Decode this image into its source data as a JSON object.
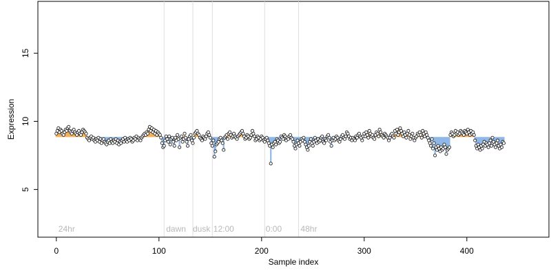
{
  "chart_data": {
    "type": "scatter",
    "title": "",
    "xlabel": "Sample index",
    "ylabel": "Expression",
    "xlim": [
      -18,
      480
    ],
    "ylim": [
      1.5,
      18.8
    ],
    "xticks": [
      0,
      100,
      200,
      300,
      400
    ],
    "yticks": [
      5,
      10,
      15
    ],
    "grid": false,
    "baseline": 8.85,
    "colors": {
      "above_baseline": "#f5b05b",
      "below_baseline": "#8fb7e8",
      "divider": "#dddddd",
      "point_outline": "#1f1f1f",
      "axis": "#000000"
    },
    "annotations": [
      {
        "label": "24hr",
        "x": 2,
        "y": 2.0
      },
      {
        "label": "dawn",
        "x": 107,
        "y": 2.0
      },
      {
        "label": "dusk",
        "x": 133,
        "y": 2.0
      },
      {
        "label": "12:00",
        "x": 153,
        "y": 2.0
      },
      {
        "label": "0:00",
        "x": 204,
        "y": 2.0
      },
      {
        "label": "48hr",
        "x": 238,
        "y": 2.0
      }
    ],
    "dividers": [
      105,
      133,
      152,
      203,
      236
    ],
    "series": [
      {
        "values": [
          9.1,
          9.3,
          9.5,
          9.2,
          9.4,
          9.3,
          9.1,
          9.0,
          9.2,
          9.4,
          9.3,
          9.5,
          9.6,
          9.3,
          9.2,
          9.1,
          9.3,
          9.4,
          9.2,
          9.1,
          9.0,
          9.2,
          9.3,
          9.1,
          9.0,
          9.2,
          9.4,
          9.3,
          9.2,
          9.1,
          8.8,
          8.7,
          8.6,
          8.8,
          8.9,
          8.7,
          8.8,
          8.6,
          8.5,
          8.7,
          8.6,
          8.8,
          8.5,
          8.7,
          8.4,
          8.6,
          8.7,
          8.5,
          8.4,
          8.3,
          8.5,
          8.6,
          8.4,
          8.7,
          8.5,
          8.4,
          8.6,
          8.5,
          8.7,
          8.4,
          8.6,
          8.3,
          8.5,
          8.4,
          8.6,
          8.7,
          8.5,
          8.8,
          8.6,
          8.5,
          8.7,
          8.6,
          8.8,
          8.7,
          8.5,
          8.6,
          8.8,
          8.7,
          8.9,
          8.6,
          8.8,
          8.7,
          8.6,
          8.8,
          8.9,
          9.0,
          9.1,
          9.0,
          9.2,
          9.1,
          9.4,
          9.6,
          9.3,
          9.5,
          9.2,
          9.4,
          9.1,
          9.3,
          9.0,
          9.2,
          9.1,
          9.0,
          8.8,
          8.4,
          8.1,
          8.2,
          8.6,
          8.9,
          8.7,
          8.5,
          8.9,
          8.3,
          8.7,
          8.8,
          8.5,
          8.2,
          8.8,
          8.6,
          9.0,
          8.7,
          8.1,
          8.8,
          8.9,
          8.5,
          8.7,
          9.1,
          8.8,
          8.5,
          8.2,
          8.7,
          8.9,
          9.0,
          8.6,
          8.4,
          8.8,
          9.1,
          9.2,
          9.3,
          9.1,
          9.0,
          8.8,
          8.7,
          8.6,
          8.9,
          8.8,
          8.7,
          8.9,
          9.1,
          9.2,
          9.0,
          8.8,
          8.4,
          8.2,
          8.6,
          7.4,
          7.8,
          8.3,
          8.4,
          8.5,
          8.7,
          8.8,
          8.6,
          8.4,
          7.9,
          8.8,
          8.9,
          9.0,
          8.7,
          9.1,
          9.2,
          9.0,
          8.8,
          8.9,
          9.1,
          8.9,
          8.8,
          8.7,
          8.9,
          9.0,
          9.1,
          9.2,
          9.3,
          9.1,
          8.9,
          8.7,
          8.8,
          9.0,
          8.9,
          8.7,
          8.8,
          9.0,
          9.3,
          9.1,
          8.9,
          8.6,
          8.7,
          8.9,
          8.8,
          8.6,
          8.7,
          8.9,
          8.8,
          8.6,
          8.5,
          8.7,
          8.8,
          8.6,
          8.4,
          8.2,
          6.9,
          8.3,
          8.1,
          8.4,
          8.5,
          8.3,
          8.7,
          8.6,
          8.4,
          8.5,
          8.9,
          8.8,
          8.7,
          9.0,
          8.9,
          8.6,
          8.8,
          8.7,
          8.9,
          9.0,
          8.8,
          8.7,
          8.5,
          8.2,
          8.0,
          8.3,
          8.6,
          8.4,
          8.2,
          8.5,
          8.7,
          8.6,
          8.8,
          8.5,
          8.3,
          8.1,
          7.9,
          8.2,
          8.5,
          8.7,
          8.4,
          8.2,
          8.5,
          8.8,
          8.6,
          8.4,
          8.7,
          8.5,
          8.6,
          8.8,
          8.9,
          8.5,
          8.4,
          8.7,
          8.6,
          8.9,
          9.0,
          8.8,
          8.5,
          8.2,
          8.6,
          8.8,
          8.6,
          8.7,
          8.9,
          8.8,
          8.6,
          8.5,
          8.7,
          8.9,
          9.0,
          8.8,
          8.7,
          8.9,
          9.2,
          9.1,
          8.9,
          8.7,
          8.8,
          8.6,
          8.8,
          8.7,
          8.6,
          8.9,
          8.8,
          9.0,
          9.1,
          8.9,
          8.8,
          8.6,
          8.9,
          9.1,
          8.9,
          9.2,
          9.0,
          8.8,
          9.3,
          9.1,
          8.9,
          9.0,
          8.8,
          8.7,
          9.0,
          9.2,
          9.1,
          8.9,
          9.4,
          9.2,
          9.0,
          8.9,
          8.8,
          9.1,
          9.0,
          8.9,
          8.8,
          8.6,
          8.8,
          9.0,
          9.1,
          8.9,
          8.8,
          9.3,
          9.1,
          9.4,
          9.0,
          9.2,
          9.5,
          9.3,
          9.1,
          8.9,
          9.2,
          9.0,
          8.8,
          9.1,
          9.3,
          9.0,
          8.7,
          8.9,
          9.1,
          8.8,
          8.6,
          8.8,
          8.9,
          9.1,
          9.0,
          9.2,
          9.0,
          8.8,
          9.3,
          9.1,
          8.9,
          9.2,
          9.0,
          8.8,
          8.6,
          8.4,
          8.2,
          8.7,
          8.0,
          8.4,
          7.5,
          8.1,
          7.9,
          8.2,
          8.0,
          7.8,
          8.1,
          7.9,
          8.0,
          8.3,
          8.1,
          7.6,
          7.9,
          8.0,
          8.1,
          9.0,
          9.2,
          9.1,
          8.9,
          9.0,
          9.3,
          9.1,
          9.2,
          9.0,
          9.1,
          9.3,
          9.2,
          9.1,
          9.0,
          9.3,
          9.2,
          9.1,
          9.4,
          9.2,
          9.0,
          9.3,
          9.1,
          9.2,
          9.0,
          8.6,
          8.2,
          8.0,
          8.3,
          8.1,
          7.9,
          8.2,
          8.0,
          8.3,
          8.5,
          8.2,
          8.4,
          8.3,
          8.1,
          8.4,
          8.6,
          8.2,
          8.8,
          8.5,
          8.3,
          8.1,
          8.4,
          8.6,
          8.2,
          8.0,
          8.3,
          8.1,
          8.5,
          8.4
        ]
      }
    ]
  }
}
